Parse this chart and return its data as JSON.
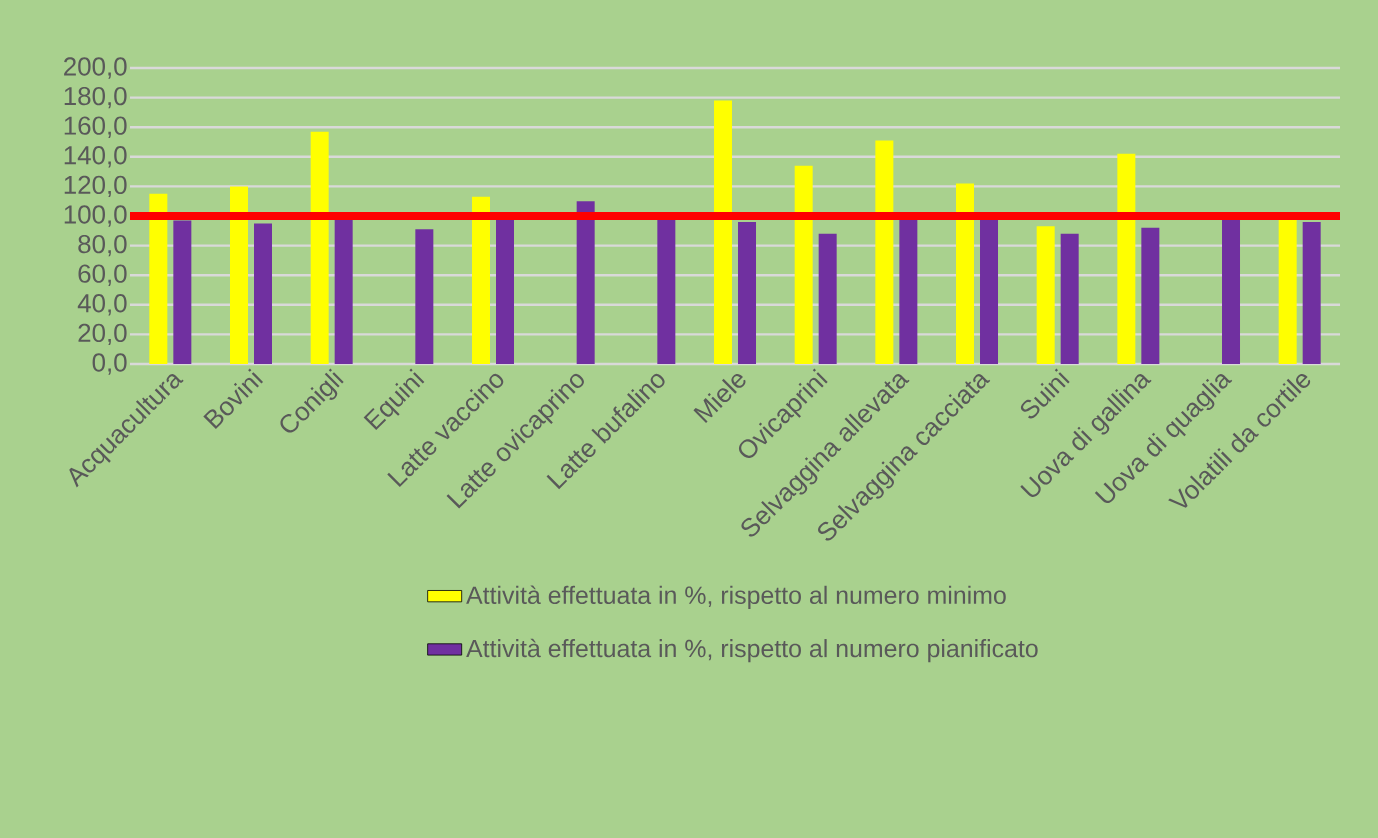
{
  "chart_data": {
    "type": "bar",
    "categories": [
      "Acquacultura",
      "Bovini",
      "Conigli",
      "Equini",
      "Latte vaccino",
      "Latte ovicaprino",
      "Latte bufalino",
      "Miele",
      "Ovicaprini",
      "Selvaggina allevata",
      "Selvaggina cacciata",
      "Suini",
      "Uova di gallina",
      "Uova di quaglia",
      "Volatili da cortile"
    ],
    "series": [
      {
        "name": "Attività effettuata in %, rispetto al numero minimo",
        "color": "#ffff00",
        "values": [
          115,
          120,
          157,
          null,
          113,
          null,
          null,
          178,
          134,
          151,
          122,
          93,
          142,
          null,
          99
        ]
      },
      {
        "name": "Attività effettuata in %, rispetto al numero pianificato",
        "color": "#7030a0",
        "values": [
          97,
          95,
          100,
          91,
          100,
          110,
          100,
          96,
          88,
          100,
          100,
          88,
          92,
          100,
          96
        ]
      }
    ],
    "ylim": [
      0,
      200
    ],
    "yticks": [
      {
        "value": 0,
        "label": "0,0"
      },
      {
        "value": 20,
        "label": "20,0"
      },
      {
        "value": 40,
        "label": "40,0"
      },
      {
        "value": 60,
        "label": "60,0"
      },
      {
        "value": 80,
        "label": "80,0"
      },
      {
        "value": 100,
        "label": "100,0"
      },
      {
        "value": 120,
        "label": "120,0"
      },
      {
        "value": 140,
        "label": "140,0"
      },
      {
        "value": 160,
        "label": "160,0"
      },
      {
        "value": 180,
        "label": "180,0"
      },
      {
        "value": 200,
        "label": "200,0"
      }
    ],
    "grid": "y",
    "legend": "bottom",
    "ref_lines": [
      {
        "axis": "y",
        "value": 100,
        "color": "#ff0000"
      }
    ]
  }
}
